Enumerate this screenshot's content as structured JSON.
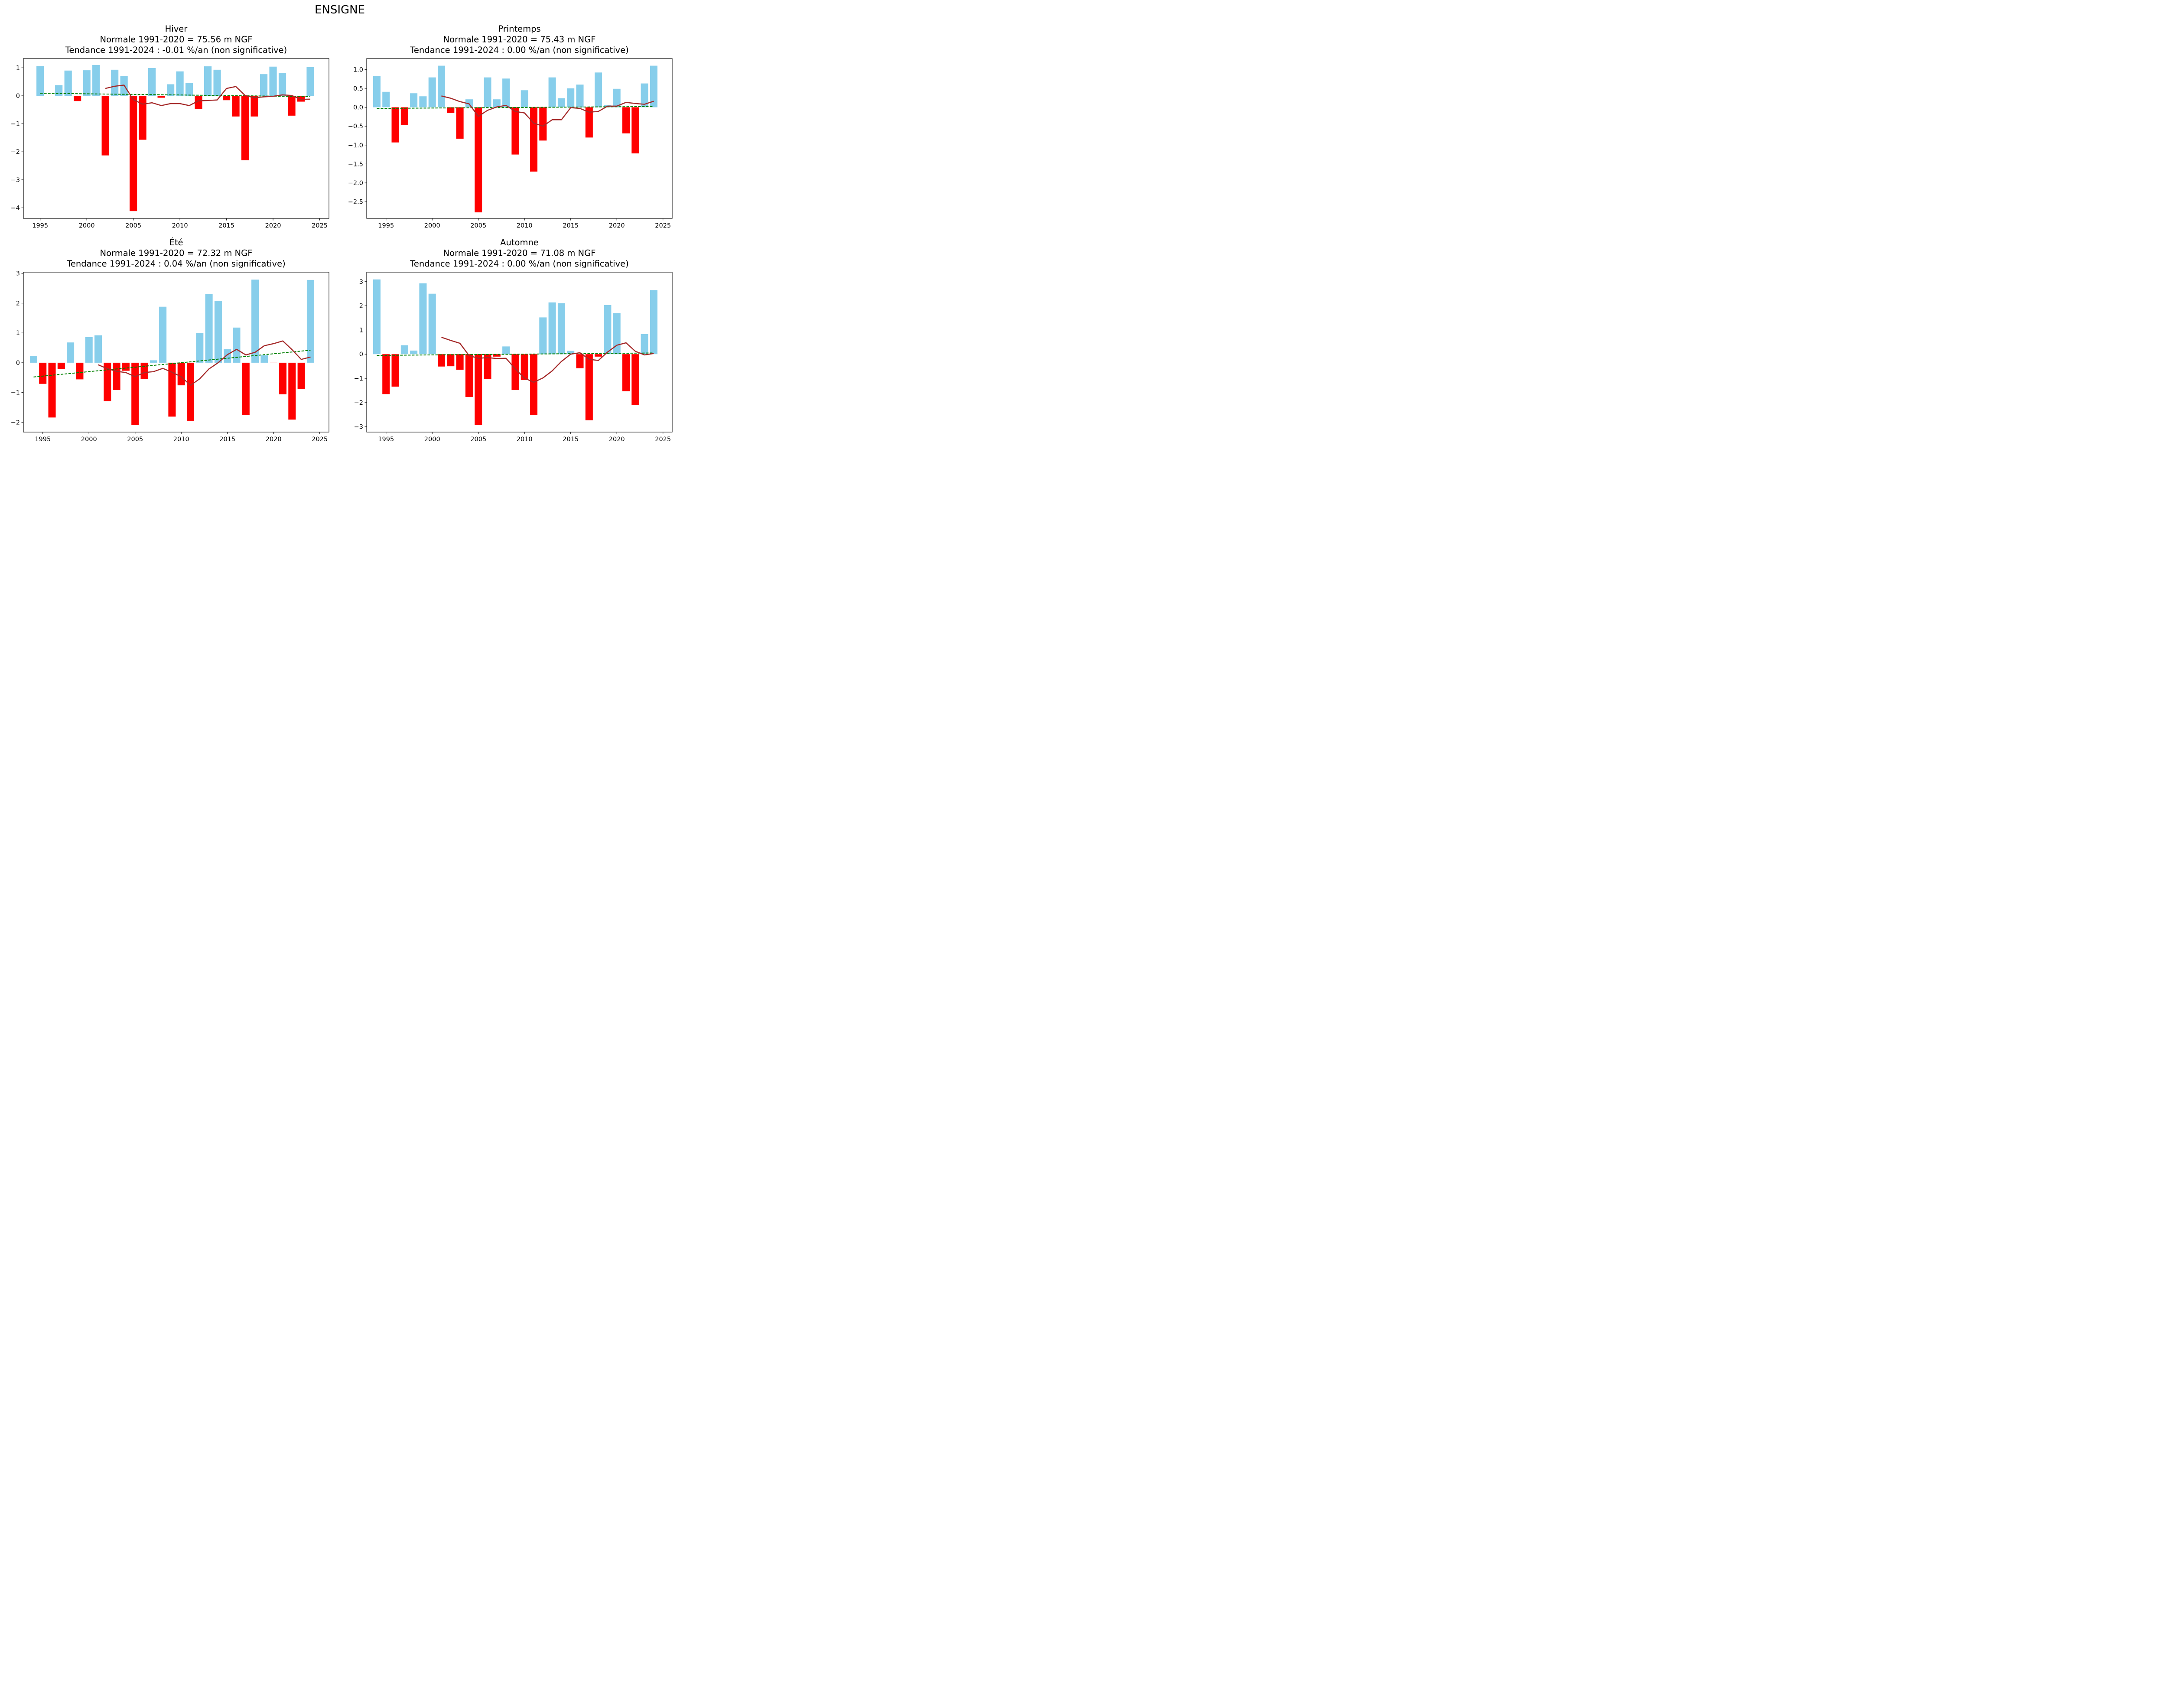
{
  "figure": {
    "suptitle": "ENSIGNE"
  },
  "colors": {
    "positive": "#87CEEB",
    "negative": "#FF0000",
    "moving_avg": "#A52A2A",
    "trend": "#008000"
  },
  "chart_data": [
    {
      "type": "bar",
      "season": "Hiver",
      "title_lines": [
        "Hiver",
        "Normale 1991-2020 = 75.56 m NGF",
        "Tendance 1991-2024 : -0.01 %/an (non significative)"
      ],
      "x": [
        1995,
        1996,
        1997,
        1998,
        1999,
        2000,
        2001,
        2002,
        2003,
        2004,
        2005,
        2006,
        2007,
        2008,
        2009,
        2010,
        2011,
        2012,
        2013,
        2014,
        2015,
        2016,
        2017,
        2018,
        2019,
        2020,
        2021,
        2022,
        2023,
        2024
      ],
      "values": [
        1.06,
        -0.01,
        0.38,
        0.9,
        -0.19,
        0.91,
        1.1,
        -2.13,
        0.93,
        0.71,
        -4.12,
        -1.57,
        0.99,
        -0.07,
        0.41,
        0.87,
        0.46,
        -0.47,
        1.05,
        0.93,
        -0.16,
        -0.74,
        -2.3,
        -0.74,
        0.77,
        1.04,
        0.82,
        -0.71,
        -0.21,
        1.02
      ],
      "moving_average": {
        "x": [
          2002,
          2003,
          2004,
          2005,
          2006,
          2007,
          2008,
          2009,
          2010,
          2011,
          2012,
          2013,
          2014,
          2015,
          2016,
          2017,
          2018,
          2019,
          2020,
          2021,
          2022,
          2023,
          2024
        ],
        "values": [
          0.26,
          0.34,
          0.38,
          -0.14,
          -0.3,
          -0.25,
          -0.35,
          -0.28,
          -0.28,
          -0.35,
          -0.18,
          -0.17,
          -0.15,
          0.26,
          0.33,
          0.01,
          -0.07,
          -0.04,
          -0.02,
          0.03,
          0.01,
          -0.13,
          -0.12
        ]
      },
      "trend": {
        "x": [
          1995,
          2024
        ],
        "values": [
          0.09,
          -0.03
        ]
      },
      "xlim": [
        1993.2,
        2026
      ],
      "ylim": [
        -4.38,
        1.33
      ],
      "xticks": [
        1995,
        2000,
        2005,
        2010,
        2015,
        2020,
        2025
      ],
      "yticks": [
        1,
        0,
        -1,
        -2,
        -3,
        -4
      ],
      "ytick_labels": [
        "1",
        "0",
        "−1",
        "−2",
        "−3",
        "−4"
      ],
      "xlabel": "",
      "ylabel": "",
      "grid": false
    },
    {
      "type": "bar",
      "season": "Printemps",
      "title_lines": [
        "Printemps",
        "Normale 1991-2020 = 75.43 m NGF",
        "Tendance 1991-2024 : 0.00 %/an (non significative)"
      ],
      "x": [
        1994,
        1995,
        1996,
        1997,
        1998,
        1999,
        2000,
        2001,
        2002,
        2003,
        2004,
        2005,
        2006,
        2007,
        2008,
        2009,
        2010,
        2011,
        2012,
        2013,
        2014,
        2015,
        2016,
        2017,
        2018,
        2019,
        2020,
        2021,
        2022,
        2023,
        2024
      ],
      "values": [
        0.83,
        0.41,
        -0.93,
        -0.47,
        0.37,
        0.29,
        0.79,
        1.1,
        -0.15,
        -0.83,
        0.21,
        -2.78,
        0.79,
        0.21,
        0.76,
        -1.25,
        0.45,
        -1.7,
        -0.88,
        0.79,
        0.24,
        0.5,
        0.6,
        -0.8,
        0.92,
        0.06,
        0.49,
        -0.69,
        -1.22,
        0.63,
        1.1
      ],
      "moving_average": {
        "x": [
          2001,
          2002,
          2003,
          2004,
          2005,
          2006,
          2007,
          2008,
          2009,
          2010,
          2011,
          2012,
          2013,
          2014,
          2015,
          2016,
          2017,
          2018,
          2019,
          2020,
          2021,
          2022,
          2023,
          2024
        ],
        "values": [
          0.3,
          0.24,
          0.15,
          0.09,
          -0.24,
          -0.08,
          0.01,
          0.05,
          -0.11,
          -0.15,
          -0.42,
          -0.5,
          -0.33,
          -0.33,
          -0.01,
          -0.03,
          -0.13,
          -0.11,
          0.03,
          0.03,
          0.13,
          0.1,
          0.08,
          0.16
        ]
      },
      "trend": {
        "x": [
          1994,
          2024
        ],
        "values": [
          -0.03,
          0.02
        ]
      },
      "xlim": [
        1992.9,
        2026
      ],
      "ylim": [
        -2.94,
        1.29
      ],
      "xticks": [
        1995,
        2000,
        2005,
        2010,
        2015,
        2020,
        2025
      ],
      "yticks": [
        1.0,
        0.5,
        0.0,
        -0.5,
        -1.0,
        -1.5,
        -2.0,
        -2.5
      ],
      "ytick_labels": [
        "1.0",
        "0.5",
        "0.0",
        "−0.5",
        "−1.0",
        "−1.5",
        "−2.0",
        "−2.5"
      ],
      "xlabel": "",
      "ylabel": "",
      "grid": false
    },
    {
      "type": "bar",
      "season": "Été",
      "title_lines": [
        "Été",
        "Normale 1991-2020 = 72.32 m NGF",
        "Tendance 1991-2024 : 0.04 %/an (non significative)"
      ],
      "x": [
        1994,
        1995,
        1996,
        1997,
        1998,
        1999,
        2000,
        2001,
        2002,
        2003,
        2004,
        2005,
        2006,
        2007,
        2008,
        2009,
        2010,
        2011,
        2012,
        2013,
        2014,
        2015,
        2016,
        2017,
        2018,
        2019,
        2020,
        2021,
        2022,
        2023,
        2024
      ],
      "values": [
        0.23,
        -0.71,
        -1.84,
        -0.21,
        0.68,
        -0.56,
        0.86,
        0.92,
        -1.29,
        -0.92,
        -0.27,
        -2.09,
        -0.54,
        0.08,
        1.88,
        -1.81,
        -0.76,
        -1.95,
        1.0,
        2.3,
        2.08,
        0.45,
        1.18,
        -1.75,
        2.79,
        0.25,
        -0.01,
        -1.06,
        -1.91,
        -0.89,
        2.78
      ],
      "moving_average": {
        "x": [
          2001,
          2002,
          2003,
          2004,
          2005,
          2006,
          2007,
          2008,
          2009,
          2010,
          2011,
          2012,
          2013,
          2014,
          2015,
          2016,
          2017,
          2018,
          2019,
          2020,
          2021,
          2022,
          2023,
          2024
        ],
        "values": [
          -0.07,
          -0.2,
          -0.29,
          -0.33,
          -0.47,
          -0.33,
          -0.3,
          -0.19,
          -0.32,
          -0.47,
          -0.76,
          -0.54,
          -0.21,
          0.0,
          0.27,
          0.45,
          0.26,
          0.35,
          0.57,
          0.64,
          0.73,
          0.44,
          0.11,
          0.19
        ]
      },
      "trend": {
        "x": [
          1994,
          2024
        ],
        "values": [
          -0.48,
          0.42
        ]
      },
      "xlim": [
        1992.9,
        2026
      ],
      "ylim": [
        -2.33,
        3.04
      ],
      "xticks": [
        1995,
        2000,
        2005,
        2010,
        2015,
        2020,
        2025
      ],
      "yticks": [
        3,
        2,
        1,
        0,
        -1,
        -2
      ],
      "ytick_labels": [
        "3",
        "2",
        "1",
        "0",
        "−1",
        "−2"
      ],
      "xlabel": "",
      "ylabel": "",
      "grid": false
    },
    {
      "type": "bar",
      "season": "Automne",
      "title_lines": [
        "Automne",
        "Normale 1991-2020 = 71.08 m NGF",
        "Tendance 1991-2024 : 0.00 %/an (non significative)"
      ],
      "x": [
        1994,
        1995,
        1996,
        1997,
        1998,
        1999,
        2000,
        2001,
        2002,
        2003,
        2004,
        2005,
        2006,
        2007,
        2008,
        2009,
        2010,
        2011,
        2012,
        2013,
        2014,
        2015,
        2016,
        2017,
        2018,
        2019,
        2020,
        2021,
        2022,
        2023,
        2024
      ],
      "values": [
        3.09,
        -1.65,
        -1.34,
        0.37,
        0.15,
        2.93,
        2.5,
        -0.51,
        -0.5,
        -0.64,
        -1.77,
        -2.92,
        -1.02,
        -0.1,
        0.32,
        -1.48,
        -1.07,
        -2.51,
        1.52,
        2.14,
        2.11,
        0.14,
        -0.58,
        -2.73,
        -0.1,
        2.03,
        1.7,
        -1.53,
        -2.1,
        0.83,
        2.65
      ],
      "moving_average": {
        "x": [
          2001,
          2002,
          2003,
          2004,
          2005,
          2006,
          2007,
          2008,
          2009,
          2010,
          2011,
          2012,
          2013,
          2014,
          2015,
          2016,
          2017,
          2018,
          2019,
          2020,
          2021,
          2022,
          2023,
          2024
        ],
        "values": [
          0.7,
          0.57,
          0.45,
          -0.06,
          -0.17,
          -0.14,
          -0.18,
          -0.17,
          -0.61,
          -0.99,
          -1.16,
          -0.98,
          -0.69,
          -0.3,
          0.0,
          0.06,
          -0.21,
          -0.26,
          0.09,
          0.37,
          0.47,
          0.12,
          -0.03,
          0.03
        ]
      },
      "trend": {
        "x": [
          1994,
          2024
        ],
        "values": [
          -0.05,
          0.05
        ]
      },
      "xlim": [
        1992.9,
        2026
      ],
      "ylim": [
        -3.22,
        3.39
      ],
      "xticks": [
        1995,
        2000,
        2005,
        2010,
        2015,
        2020,
        2025
      ],
      "yticks": [
        3,
        2,
        1,
        0,
        -1,
        -2,
        -3
      ],
      "ytick_labels": [
        "3",
        "2",
        "1",
        "0",
        "−1",
        "−2",
        "−3"
      ],
      "xlabel": "",
      "ylabel": "",
      "grid": false
    }
  ]
}
